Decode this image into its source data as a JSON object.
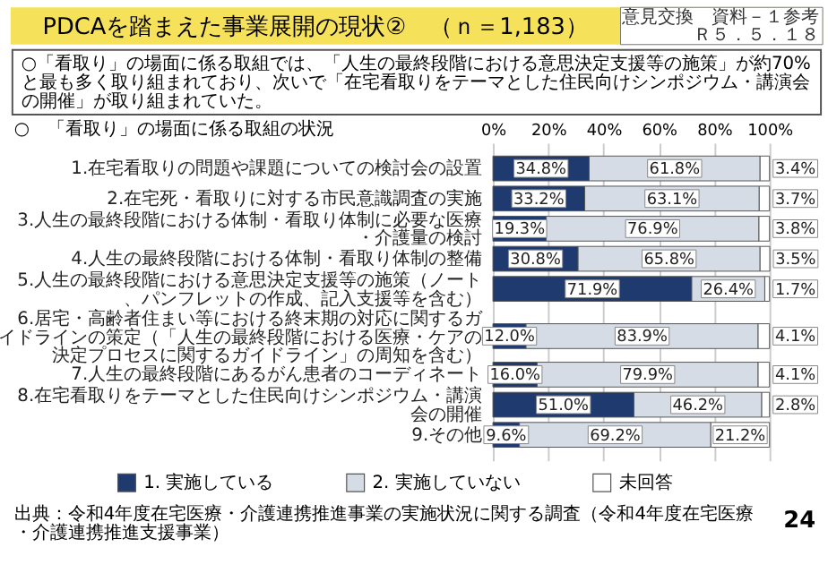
{
  "chart_data": {
    "type": "bar",
    "orientation": "horizontal",
    "stacked": true,
    "title": "PDCAを踏まえた事業展開の現状②　（ｎ＝1,183）",
    "subtitle": "○　「看取り」の場面に係る取組の状況",
    "categories": [
      "1.在宅看取りの問題や課題についての検討会の設置",
      "2.在宅死・看取りに対する市民意識調査の実施",
      "3.人生の最終段階における体制・看取り体制に必要な医療・介護量の検討",
      "4.人生の最終段階における体制・看取り体制の整備",
      "5.人生の最終段階における意思決定支援等の施策（ノート、パンフレットの作成、記入支援等を含む）",
      "6.居宅・高齢者住まい等における終末期の対応に関するガイドラインの策定（「人生の最終段階における医療・ケアの決定プロセスに関するガイドライン」の周知を含む）",
      "7.人生の最終段階にあるがん患者のコーディネート",
      "8.在宅看取りをテーマとした住民向けシンポジウム・講演会の開催",
      "9.その他"
    ],
    "series": [
      {
        "name": "1. 実施している",
        "color": "#1f3a6e",
        "values": [
          34.8,
          33.2,
          19.3,
          30.8,
          71.9,
          12.0,
          16.0,
          51.0,
          9.6
        ],
        "value_labels": [
          "34.8%",
          "33.2%",
          "19.3%",
          "30.8%",
          "71.9%",
          "12.0%",
          "16.0%",
          "51.0%",
          "9.6%"
        ]
      },
      {
        "name": "2. 実施していない",
        "color": "#d6dce6",
        "values": [
          61.8,
          63.1,
          76.9,
          65.8,
          26.4,
          83.9,
          79.9,
          46.2,
          69.2
        ],
        "value_labels": [
          "61.8%",
          "63.1%",
          "76.9%",
          "65.8%",
          "26.4%",
          "83.9%",
          "79.9%",
          "46.2%",
          "69.2%"
        ]
      },
      {
        "name": "未回答",
        "color": "#ffffff",
        "values": [
          3.4,
          3.7,
          3.8,
          3.5,
          1.7,
          4.1,
          4.1,
          2.8,
          21.2
        ],
        "value_labels": [
          "3.4%",
          "3.7%",
          "3.8%",
          "3.5%",
          "1.7%",
          "4.1%",
          "4.1%",
          "2.8%",
          "21.2%"
        ]
      }
    ],
    "xlim": [
      0,
      100
    ],
    "xticks": [
      {
        "value": 0,
        "label": "0%"
      },
      {
        "value": 20,
        "label": "20%"
      },
      {
        "value": 40,
        "label": "40%"
      },
      {
        "value": 60,
        "label": "60%"
      },
      {
        "value": 80,
        "label": "80%"
      },
      {
        "value": 100,
        "label": "100%"
      }
    ],
    "grid": "x",
    "legend": "bottom",
    "annotations": [
      "○「看取り」の場面に係る取組では、「人生の最終段階における意思決定支援等の施策」が約70%と最も多く取り組まれており、次いで「在宅看取りをテーマとした住民向けシンポジウム・講演会の開催」が取り組まれていた。",
      "意見交換　資料－１参考Ｒ５．５．１８",
      "出典：令和4年度在宅医療・介護連携推進事業の実施状況に関する調査（令和4年度在宅医療・介護連携推進支援事業）",
      "24"
    ]
  }
}
